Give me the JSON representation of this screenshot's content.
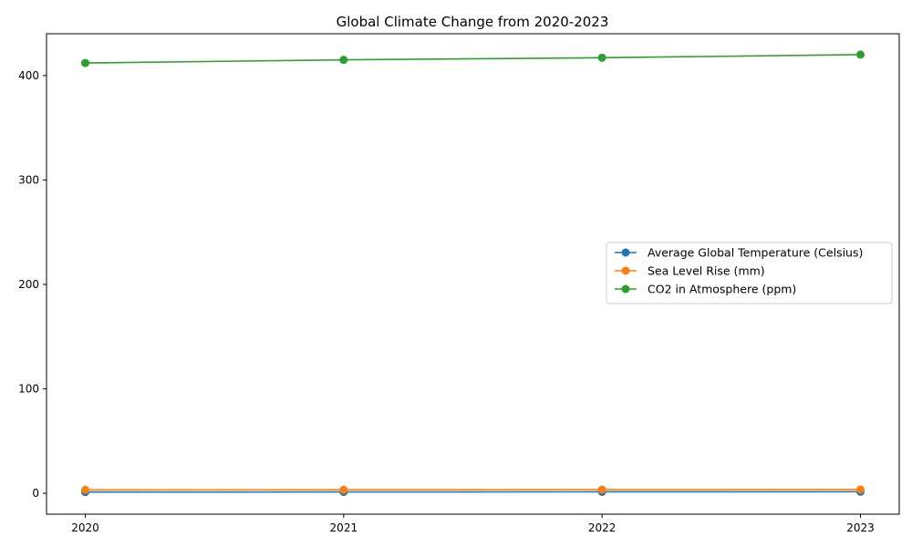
{
  "chart_data": {
    "type": "line",
    "title": "Global Climate Change from 2020-2023",
    "xlabel": "",
    "ylabel": "",
    "categories": [
      "2020",
      "2021",
      "2022",
      "2023"
    ],
    "ylim": [
      -20,
      440
    ],
    "yticks": [
      0,
      100,
      200,
      300,
      400
    ],
    "grid": false,
    "legend_position": "center-right",
    "series": [
      {
        "name": "Average Global Temperature (Celsius)",
        "color": "#1f77b4",
        "marker": "circle",
        "values": [
          1.2,
          1.3,
          1.4,
          1.5
        ]
      },
      {
        "name": "Sea Level Rise (mm)",
        "color": "#ff7f0e",
        "marker": "circle",
        "values": [
          3.3,
          3.4,
          3.5,
          3.6
        ]
      },
      {
        "name": "CO2 in Atmosphere (ppm)",
        "color": "#2ca02c",
        "marker": "circle",
        "values": [
          412,
          415,
          417,
          420
        ]
      }
    ]
  }
}
